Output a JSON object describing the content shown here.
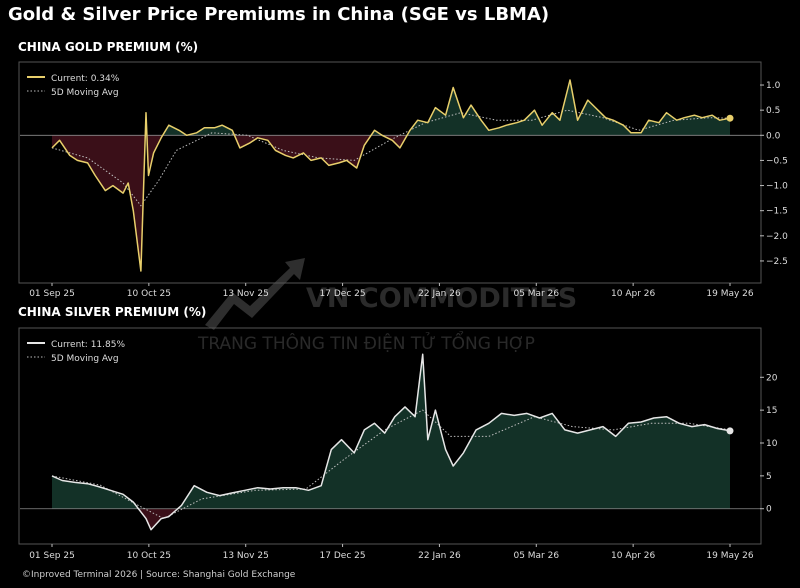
{
  "title": "Gold & Silver Price Premiums in China (SGE vs LBMA)",
  "footer": "©Inproved Terminal 2026 | Source: Shanghai Gold Exchange",
  "watermark": {
    "brand": "VN COMMODITIES",
    "tagline": "TRANG THÔNG TIN ĐIỆN TỬ TỔNG HỢP"
  },
  "colors": {
    "background": "#000000",
    "gold": "#e8cf6b",
    "silver": "#e6e6e6",
    "positive_fill": "#133127",
    "negative_fill": "#3a0f18",
    "moving_avg": "#bdbdbd"
  },
  "panels": {
    "gold": {
      "title": "CHINA GOLD PREMIUM (%)",
      "legend_current": "Current: 0.34%",
      "legend_ma": "5D Moving Avg"
    },
    "silver": {
      "title": "CHINA SILVER PREMIUM (%)",
      "legend_current": "Current: 11.85%",
      "legend_ma": "5D Moving Avg"
    }
  },
  "chart_data": [
    {
      "type": "line",
      "title": "CHINA GOLD PREMIUM (%)",
      "x_tick_labels": [
        "01 Sep 25",
        "10 Oct 25",
        "13 Nov 25",
        "17 Dec 25",
        "22 Jan 26",
        "05 Mar 26",
        "10 Apr 26",
        "19 May 26"
      ],
      "y_ticks": [
        1.0,
        0.5,
        0.0,
        -0.5,
        -1.0,
        -1.5,
        -2.0,
        -2.5
      ],
      "ylim": [
        -2.7,
        1.1
      ],
      "grid": false,
      "legend_position": "top-left",
      "series": [
        {
          "name": "Current: 0.34%",
          "color": "#e8cf6b",
          "x": [
            "2025-09-01",
            "2025-09-04",
            "2025-09-08",
            "2025-09-11",
            "2025-09-15",
            "2025-09-18",
            "2025-09-22",
            "2025-09-25",
            "2025-09-29",
            "2025-10-01",
            "2025-10-03",
            "2025-10-06",
            "2025-10-08",
            "2025-10-09",
            "2025-10-11",
            "2025-10-14",
            "2025-10-17",
            "2025-10-21",
            "2025-10-24",
            "2025-10-28",
            "2025-10-31",
            "2025-11-04",
            "2025-11-07",
            "2025-11-11",
            "2025-11-14",
            "2025-11-18",
            "2025-11-21",
            "2025-11-25",
            "2025-11-28",
            "2025-12-02",
            "2025-12-05",
            "2025-12-09",
            "2025-12-12",
            "2025-12-16",
            "2025-12-19",
            "2025-12-23",
            "2025-12-26",
            "2025-12-30",
            "2026-01-02",
            "2026-01-06",
            "2026-01-09",
            "2026-01-13",
            "2026-01-16",
            "2026-01-20",
            "2026-01-23",
            "2026-01-27",
            "2026-01-30",
            "2026-02-03",
            "2026-02-06",
            "2026-02-10",
            "2026-02-13",
            "2026-02-17",
            "2026-02-20",
            "2026-02-24",
            "2026-02-27",
            "2026-03-03",
            "2026-03-06",
            "2026-03-10",
            "2026-03-13",
            "2026-03-17",
            "2026-03-20",
            "2026-03-24",
            "2026-03-27",
            "2026-03-31",
            "2026-04-03",
            "2026-04-07",
            "2026-04-10",
            "2026-04-14",
            "2026-04-17",
            "2026-04-21",
            "2026-04-24",
            "2026-04-28",
            "2026-05-01",
            "2026-05-05",
            "2026-05-08",
            "2026-05-12",
            "2026-05-15",
            "2026-05-19",
            "2026-05-22",
            "2026-05-26"
          ],
          "values": [
            -0.25,
            -0.1,
            -0.4,
            -0.5,
            -0.55,
            -0.8,
            -1.1,
            -1.0,
            -1.15,
            -0.95,
            -1.5,
            -2.7,
            0.45,
            -0.8,
            -0.35,
            -0.05,
            0.2,
            0.1,
            0.0,
            0.05,
            0.15,
            0.15,
            0.2,
            0.1,
            -0.25,
            -0.15,
            -0.05,
            -0.1,
            -0.3,
            -0.4,
            -0.45,
            -0.35,
            -0.5,
            -0.45,
            -0.6,
            -0.55,
            -0.5,
            -0.65,
            -0.2,
            0.1,
            0.0,
            -0.1,
            -0.25,
            0.1,
            0.3,
            0.25,
            0.55,
            0.4,
            0.95,
            0.35,
            0.6,
            0.3,
            0.1,
            0.15,
            0.2,
            0.25,
            0.3,
            0.5,
            0.2,
            0.45,
            0.3,
            1.1,
            0.3,
            0.7,
            0.55,
            0.35,
            0.3,
            0.2,
            0.05,
            0.05,
            0.3,
            0.25,
            0.45,
            0.3,
            0.35,
            0.4,
            0.35,
            0.4,
            0.3,
            0.34
          ]
        },
        {
          "name": "5D Moving Avg",
          "color": "#bdbdbd",
          "style": "dotted",
          "x": [
            "2025-09-01",
            "2025-09-15",
            "2025-09-29",
            "2025-10-06",
            "2025-10-13",
            "2025-10-20",
            "2025-11-03",
            "2025-11-17",
            "2025-12-01",
            "2025-12-15",
            "2025-12-29",
            "2026-01-12",
            "2026-01-26",
            "2026-02-09",
            "2026-02-23",
            "2026-03-09",
            "2026-03-23",
            "2026-04-06",
            "2026-04-20",
            "2026-05-04",
            "2026-05-18",
            "2026-05-26"
          ],
          "values": [
            -0.25,
            -0.45,
            -0.95,
            -1.4,
            -0.9,
            -0.3,
            0.05,
            0.0,
            -0.3,
            -0.45,
            -0.5,
            -0.1,
            0.25,
            0.45,
            0.3,
            0.3,
            0.5,
            0.35,
            0.1,
            0.3,
            0.35,
            0.34
          ]
        }
      ]
    },
    {
      "type": "line",
      "title": "CHINA SILVER PREMIUM (%)",
      "x_tick_labels": [
        "01 Sep 25",
        "10 Oct 25",
        "13 Nov 25",
        "17 Dec 25",
        "22 Jan 26",
        "05 Mar 26",
        "10 Apr 26",
        "19 May 26"
      ],
      "y_ticks": [
        20,
        15,
        10,
        5,
        0
      ],
      "ylim": [
        -4,
        24
      ],
      "grid": false,
      "legend_position": "top-left",
      "series": [
        {
          "name": "Current: 11.85%",
          "color": "#e6e6e6",
          "x": [
            "2025-09-01",
            "2025-09-05",
            "2025-09-10",
            "2025-09-15",
            "2025-09-19",
            "2025-09-24",
            "2025-09-29",
            "2025-10-03",
            "2025-10-08",
            "2025-10-10",
            "2025-10-14",
            "2025-10-17",
            "2025-10-22",
            "2025-10-27",
            "2025-11-01",
            "2025-11-06",
            "2025-11-11",
            "2025-11-16",
            "2025-11-21",
            "2025-11-26",
            "2025-12-01",
            "2025-12-06",
            "2025-12-11",
            "2025-12-16",
            "2025-12-20",
            "2025-12-24",
            "2025-12-29",
            "2026-01-02",
            "2026-01-06",
            "2026-01-10",
            "2026-01-14",
            "2026-01-18",
            "2026-01-22",
            "2026-01-25",
            "2026-01-27",
            "2026-01-30",
            "2026-02-03",
            "2026-02-06",
            "2026-02-10",
            "2026-02-15",
            "2026-02-20",
            "2026-02-25",
            "2026-03-02",
            "2026-03-07",
            "2026-03-12",
            "2026-03-17",
            "2026-03-22",
            "2026-03-27",
            "2026-04-01",
            "2026-04-06",
            "2026-04-11",
            "2026-04-16",
            "2026-04-21",
            "2026-04-26",
            "2026-05-01",
            "2026-05-06",
            "2026-05-11",
            "2026-05-16",
            "2026-05-21",
            "2026-05-26"
          ],
          "values": [
            5.0,
            4.3,
            4.0,
            3.8,
            3.4,
            2.8,
            2.2,
            1.0,
            -1.5,
            -3.2,
            -1.5,
            -1.2,
            0.5,
            3.5,
            2.5,
            2.0,
            2.4,
            2.8,
            3.2,
            3.0,
            3.2,
            3.2,
            2.8,
            3.5,
            9.0,
            10.5,
            8.5,
            12.0,
            13.0,
            11.5,
            14.0,
            15.5,
            14.0,
            23.5,
            10.5,
            15.0,
            9.0,
            6.5,
            8.5,
            12.0,
            13.0,
            14.5,
            14.2,
            14.5,
            13.8,
            14.5,
            12.0,
            11.5,
            12.0,
            12.5,
            11.0,
            13.0,
            13.2,
            13.8,
            14.0,
            13.0,
            12.5,
            12.8,
            12.2,
            11.85
          ]
        },
        {
          "name": "5D Moving Avg",
          "color": "#bdbdbd",
          "style": "dotted",
          "x": [
            "2025-09-01",
            "2025-09-20",
            "2025-10-05",
            "2025-10-15",
            "2025-10-30",
            "2025-11-20",
            "2025-12-10",
            "2025-12-25",
            "2026-01-10",
            "2026-01-25",
            "2026-02-05",
            "2026-02-20",
            "2026-03-10",
            "2026-03-25",
            "2026-04-10",
            "2026-04-25",
            "2026-05-10",
            "2026-05-26"
          ],
          "values": [
            5.0,
            3.6,
            0.5,
            -1.5,
            1.5,
            2.8,
            3.0,
            7.5,
            12.0,
            15.0,
            11.0,
            11.0,
            14.0,
            12.5,
            12.0,
            13.0,
            13.0,
            12.0
          ]
        }
      ]
    }
  ]
}
